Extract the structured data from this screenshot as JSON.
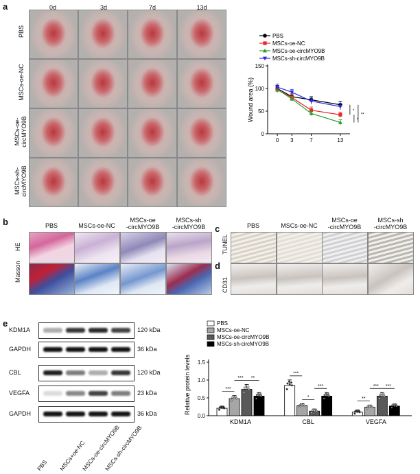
{
  "panels": {
    "a": {
      "letter": "a",
      "columns": [
        "0d",
        "3d",
        "7d",
        "13d"
      ],
      "rows": [
        "PBS",
        "MSCs-oe-NC",
        "MSCs-oe-\ncircMYO9B",
        "MSCs-sh-\ncircMYO9B"
      ]
    },
    "b": {
      "letter": "b",
      "columns": [
        "PBS",
        "MSCs-oe-NC",
        "MSCs-oe\n-circMYO9B",
        "MSCs-sh\n-circMYO9B"
      ],
      "rows": [
        "HE",
        "Masson"
      ]
    },
    "c": {
      "letter": "c",
      "columns": [
        "PBS",
        "MSCs-oe-NC",
        "MSCs-oe\n-circMYO9B",
        "MSCs-sh\n-circMYO9B"
      ],
      "row": "TUNEL"
    },
    "d": {
      "letter": "d",
      "row": "CD31"
    },
    "e": {
      "letter": "e",
      "blots": [
        {
          "name": "KDM1A",
          "kda": "120 kDa"
        },
        {
          "name": "GAPDH",
          "kda": "36 kDa"
        },
        {
          "name": "CBL",
          "kda": "120 kDa"
        },
        {
          "name": "VEGFA",
          "kda": "23 kDa"
        },
        {
          "name": "GAPDH",
          "kda": "36 kDa"
        }
      ],
      "lanes": [
        "PBS",
        "MSCs+oe-NC",
        "MSCs-oe-circMYO9B",
        "MSCs-sh-circMYO9B"
      ]
    }
  },
  "colors": {
    "pbs": "#000000",
    "oe_nc": "#e8262b",
    "oe_circ": "#2ca02c",
    "sh_circ": "#2b2be0"
  },
  "chart_data": [
    {
      "type": "line",
      "title": "",
      "xlabel": "Time (days)",
      "ylabel": "Wound area (%)",
      "x": [
        0,
        3,
        7,
        13
      ],
      "xlim": [
        -2,
        15
      ],
      "ylim": [
        0,
        150
      ],
      "yticks": [
        0,
        50,
        100,
        150
      ],
      "legend_position": "top-left",
      "series": [
        {
          "name": "PBS",
          "values": [
            100,
            82,
            75,
            64
          ],
          "errors": [
            7,
            6,
            7,
            8
          ]
        },
        {
          "name": "MSCs-oe-NC",
          "values": [
            97,
            80,
            52,
            42
          ],
          "errors": [
            6,
            6,
            7,
            6
          ]
        },
        {
          "name": "MSCs-oe-circMYO9B",
          "values": [
            98,
            77,
            45,
            25
          ],
          "errors": [
            6,
            5,
            5,
            6
          ]
        },
        {
          "name": "MSCs-sh-circMYO9B",
          "values": [
            103,
            92,
            72,
            60
          ],
          "errors": [
            7,
            6,
            7,
            7
          ]
        }
      ],
      "significance": [
        "*",
        "*",
        "**"
      ]
    },
    {
      "type": "bar",
      "title": "",
      "xlabel": "",
      "ylabel": "Relative protein levels",
      "categories": [
        "KDM1A",
        "CBL",
        "VEGFA"
      ],
      "ylim": [
        0,
        1.5
      ],
      "yticks": [
        "0.0",
        "0.5",
        "1.0",
        "1.5"
      ],
      "legend_position": "top-left",
      "series": [
        {
          "name": "PBS",
          "values": [
            0.21,
            0.85,
            0.1
          ]
        },
        {
          "name": "MSCs-oe-NC",
          "values": [
            0.48,
            0.28,
            0.24
          ]
        },
        {
          "name": "MSCs-oe-circMYO9B",
          "values": [
            0.74,
            0.13,
            0.55
          ]
        },
        {
          "name": "MSCs-sh-circMYO9B",
          "values": [
            0.55,
            0.55,
            0.27
          ]
        }
      ],
      "significance": [
        "***",
        "***",
        "**",
        "***",
        "*",
        "***",
        "**",
        "***",
        "***"
      ]
    }
  ]
}
